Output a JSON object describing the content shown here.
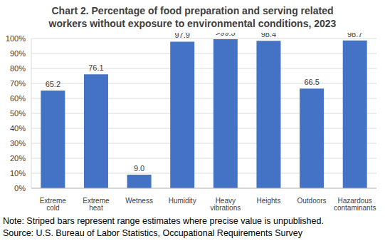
{
  "chart_data": {
    "type": "bar",
    "title": "Chart 2. Percentage of food preparation and serving related workers without exposure to environmental conditions, 2023",
    "categories": [
      "Extreme cold",
      "Extreme heat",
      "Wetness",
      "Humidity",
      "Heavy vibrations",
      "Heights",
      "Outdoors",
      "Hazardous contaminants"
    ],
    "values": [
      65.2,
      76.1,
      9.0,
      97.9,
      99.5,
      98.4,
      66.5,
      98.7
    ],
    "value_labels": [
      "65.2",
      "76.1",
      "9.0",
      "97.9",
      ">99.5",
      "98.4",
      "66.5",
      "98.7"
    ],
    "color": "#4472c4",
    "ylim": [
      0,
      100
    ],
    "yticks": [
      {
        "value": 0,
        "label": "0%"
      },
      {
        "value": 10,
        "label": "10%"
      },
      {
        "value": 20,
        "label": "20%"
      },
      {
        "value": 30,
        "label": "30%"
      },
      {
        "value": 40,
        "label": "40%"
      },
      {
        "value": 50,
        "label": "50%"
      },
      {
        "value": 60,
        "label": "60%"
      },
      {
        "value": 70,
        "label": "70%"
      },
      {
        "value": 80,
        "label": "80%"
      },
      {
        "value": 90,
        "label": "90%"
      },
      {
        "value": 100,
        "label": "100%"
      }
    ],
    "grid": true,
    "data_labels": true,
    "annotations": [
      "Note: Striped bars represent range estimates where precise value is unpublished.",
      "Source: U.S. Bureau of Labor Statistics, Occupational Requirements Survey"
    ]
  }
}
